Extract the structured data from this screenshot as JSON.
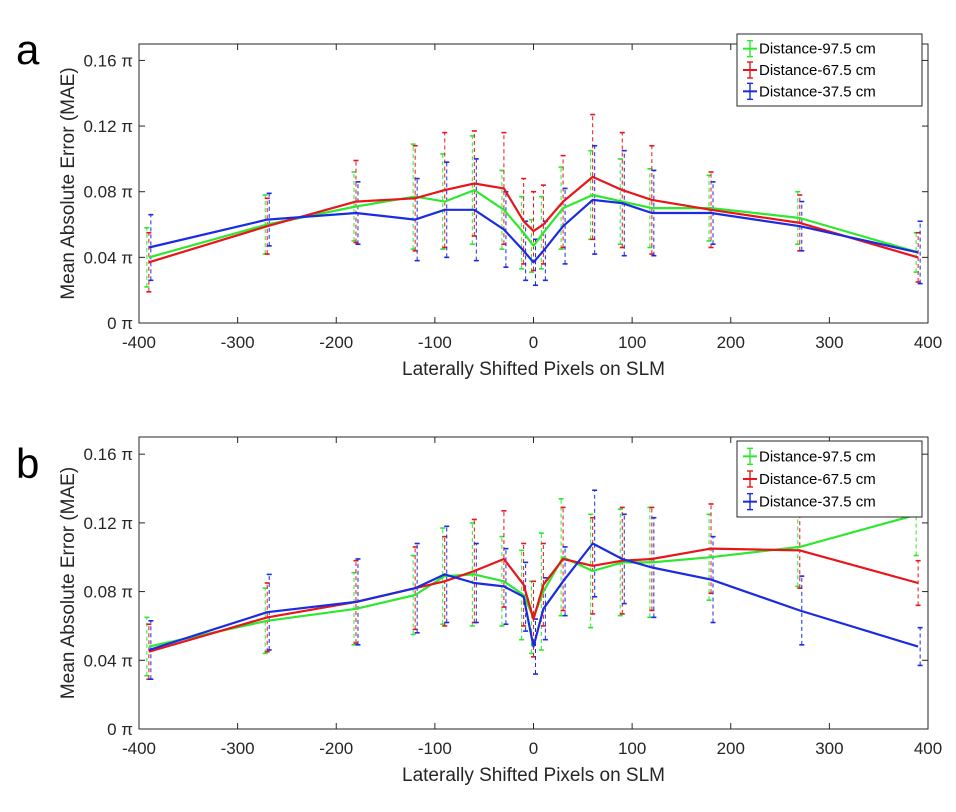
{
  "chart_data": [
    {
      "panel_letter": "a",
      "type": "line",
      "title": "",
      "xlabel": "Laterally Shifted Pixels on SLM",
      "ylabel": "Mean Absolute Error (MAE)",
      "xlim": [
        -400,
        400
      ],
      "ylim": [
        0,
        0.17
      ],
      "xticks": [
        -400,
        -300,
        -200,
        -100,
        0,
        100,
        200,
        300,
        400
      ],
      "yticks": [
        0,
        0.04,
        0.08,
        0.12,
        0.16
      ],
      "ytick_labels": [
        "0 π",
        "0.04 π",
        "0.08 π",
        "0.12 π",
        "0.16 π"
      ],
      "legend_position": "top-right",
      "x": [
        -390,
        -270,
        -180,
        -120,
        -90,
        -60,
        -30,
        -10,
        0,
        10,
        30,
        60,
        90,
        120,
        180,
        270,
        390
      ],
      "series": [
        {
          "name": "Distance-97.5 cm",
          "color": "#2ee82e",
          "values": [
            0.04,
            0.06,
            0.071,
            0.077,
            0.074,
            0.081,
            0.069,
            0.055,
            0.047,
            0.055,
            0.07,
            0.078,
            0.074,
            0.07,
            0.07,
            0.064,
            0.043
          ],
          "err": [
            0.018,
            0.018,
            0.021,
            0.032,
            0.029,
            0.033,
            0.024,
            0.022,
            0.016,
            0.022,
            0.025,
            0.027,
            0.026,
            0.024,
            0.02,
            0.016,
            0.012
          ]
        },
        {
          "name": "Distance-67.5 cm",
          "color": "#e8151b",
          "values": [
            0.037,
            0.059,
            0.074,
            0.076,
            0.081,
            0.085,
            0.082,
            0.062,
            0.056,
            0.06,
            0.074,
            0.089,
            0.081,
            0.075,
            0.069,
            0.061,
            0.04
          ],
          "err": [
            0.018,
            0.017,
            0.025,
            0.032,
            0.035,
            0.032,
            0.034,
            0.026,
            0.024,
            0.024,
            0.028,
            0.038,
            0.035,
            0.033,
            0.023,
            0.017,
            0.015
          ]
        },
        {
          "name": "Distance-37.5 cm",
          "color": "#1a2be0",
          "values": [
            0.046,
            0.063,
            0.067,
            0.063,
            0.069,
            0.069,
            0.057,
            0.044,
            0.037,
            0.044,
            0.059,
            0.075,
            0.073,
            0.067,
            0.067,
            0.059,
            0.043
          ],
          "err": [
            0.02,
            0.016,
            0.019,
            0.025,
            0.029,
            0.031,
            0.023,
            0.018,
            0.014,
            0.018,
            0.023,
            0.033,
            0.032,
            0.026,
            0.019,
            0.015,
            0.019
          ]
        }
      ]
    },
    {
      "panel_letter": "b",
      "type": "line",
      "title": "",
      "xlabel": "Laterally Shifted Pixels on SLM",
      "ylabel": "Mean Absolute Error (MAE)",
      "xlim": [
        -400,
        400
      ],
      "ylim": [
        0,
        0.17
      ],
      "xticks": [
        -400,
        -300,
        -200,
        -100,
        0,
        100,
        200,
        300,
        400
      ],
      "yticks": [
        0,
        0.04,
        0.08,
        0.12,
        0.16
      ],
      "ytick_labels": [
        "0 π",
        "0.04 π",
        "0.08 π",
        "0.12 π",
        "0.16 π"
      ],
      "legend_position": "top-right",
      "x": [
        -390,
        -270,
        -180,
        -120,
        -90,
        -60,
        -30,
        -10,
        0,
        10,
        30,
        60,
        90,
        120,
        180,
        270,
        390
      ],
      "series": [
        {
          "name": "Distance-97.5 cm",
          "color": "#2ee82e",
          "values": [
            0.048,
            0.063,
            0.07,
            0.078,
            0.089,
            0.09,
            0.086,
            0.078,
            0.065,
            0.08,
            0.1,
            0.092,
            0.097,
            0.097,
            0.1,
            0.106,
            0.125
          ],
          "err": [
            0.017,
            0.019,
            0.021,
            0.023,
            0.028,
            0.03,
            0.026,
            0.026,
            0.021,
            0.034,
            0.034,
            0.033,
            0.031,
            0.032,
            0.025,
            0.023,
            0.024
          ]
        },
        {
          "name": "Distance-67.5 cm",
          "color": "#e8151b",
          "values": [
            0.045,
            0.065,
            0.074,
            0.082,
            0.086,
            0.092,
            0.099,
            0.084,
            0.064,
            0.084,
            0.099,
            0.095,
            0.098,
            0.099,
            0.105,
            0.104,
            0.085
          ],
          "err": [
            0.016,
            0.02,
            0.024,
            0.024,
            0.026,
            0.03,
            0.028,
            0.024,
            0.022,
            0.024,
            0.03,
            0.028,
            0.031,
            0.03,
            0.026,
            0.022,
            0.013
          ]
        },
        {
          "name": "Distance-37.5 cm",
          "color": "#1a2be0",
          "values": [
            0.046,
            0.068,
            0.074,
            0.082,
            0.09,
            0.085,
            0.083,
            0.077,
            0.048,
            0.07,
            0.086,
            0.108,
            0.099,
            0.094,
            0.087,
            0.069,
            0.048
          ],
          "err": [
            0.017,
            0.022,
            0.025,
            0.026,
            0.028,
            0.023,
            0.022,
            0.02,
            0.016,
            0.018,
            0.02,
            0.031,
            0.026,
            0.029,
            0.025,
            0.02,
            0.011
          ]
        }
      ]
    }
  ]
}
